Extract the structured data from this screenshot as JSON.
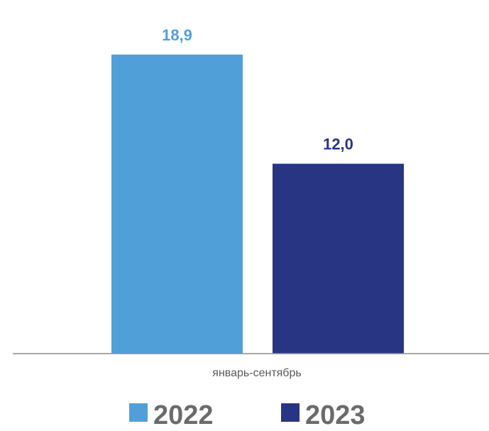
{
  "chart_data": {
    "type": "bar",
    "categories": [
      "январь-сентябрь"
    ],
    "series": [
      {
        "name": "2022",
        "values": [
          18.9
        ],
        "value_label": "18,9",
        "color": "#519fd8"
      },
      {
        "name": "2023",
        "values": [
          12.0
        ],
        "value_label": "12,0",
        "color": "#283583"
      }
    ],
    "ylim": [
      0,
      21
    ],
    "grid": false,
    "legend": "bottom-center"
  }
}
